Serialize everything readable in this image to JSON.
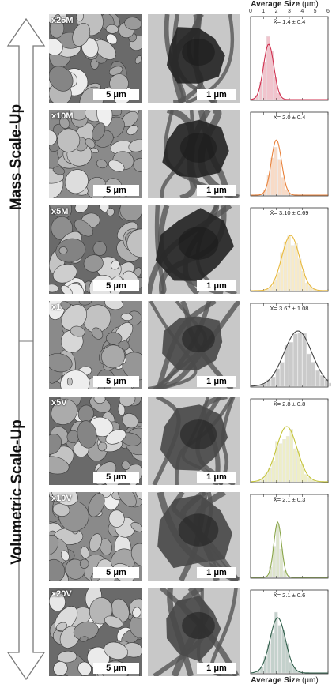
{
  "figure": {
    "axis_title": "Average Size",
    "axis_unit": "(μm)",
    "x_ticks": [
      "0",
      "1",
      "2",
      "3",
      "4",
      "5",
      "6"
    ],
    "arrows": {
      "up_label": "Mass Scale-Up",
      "down_label": "Volumetric Scale-Up"
    },
    "rows": [
      {
        "label": "x25M",
        "sem_scale": "5 μm",
        "tem_scale": "1 μm",
        "mean_text": "X̄= 1.4 ± 0.4",
        "mean": 1.4,
        "sd": 0.4,
        "color": "#d0304f"
      },
      {
        "label": "x10M",
        "sem_scale": "5 μm",
        "tem_scale": "1 μm",
        "mean_text": "X̄= 2.0 ± 0.4",
        "mean": 2.0,
        "sd": 0.4,
        "color": "#e8813a"
      },
      {
        "label": "x5M",
        "sem_scale": "5 μm",
        "tem_scale": "1 μm",
        "mean_text": "X̄= 3.10 ± 0.69",
        "mean": 3.1,
        "sd": 0.69,
        "color": "#e8b83a"
      },
      {
        "label": "x1",
        "sem_scale": "5 μm",
        "tem_scale": "1 μm",
        "mean_text": "X̄= 3.67 ± 1.08",
        "mean": 3.67,
        "sd": 1.08,
        "color": "#444444"
      },
      {
        "label": "x5V",
        "sem_scale": "5 μm",
        "tem_scale": "1 μm",
        "mean_text": "X̄= 2.8 ± 0.8",
        "mean": 2.8,
        "sd": 0.8,
        "color": "#c4c43a"
      },
      {
        "label": "x10V",
        "sem_scale": "5 μm",
        "tem_scale": "1 μm",
        "mean_text": "X̄= 2.1 ± 0.3",
        "mean": 2.1,
        "sd": 0.3,
        "color": "#8aa64a"
      },
      {
        "label": "x20V",
        "sem_scale": "5 μm",
        "tem_scale": "1 μm",
        "mean_text": "X̄= 2.1 ± 0.6",
        "mean": 2.1,
        "sd": 0.6,
        "color": "#2f5e4a"
      }
    ]
  },
  "chart_data": {
    "type": "bar",
    "xlabel": "Average Size (μm)",
    "xlim": [
      0,
      6
    ],
    "series": [
      {
        "name": "x25M",
        "mean": 1.4,
        "sd": 0.4
      },
      {
        "name": "x10M",
        "mean": 2.0,
        "sd": 0.4
      },
      {
        "name": "x5M",
        "mean": 3.1,
        "sd": 0.69
      },
      {
        "name": "x1",
        "mean": 3.67,
        "sd": 1.08
      },
      {
        "name": "x5V",
        "mean": 2.8,
        "sd": 0.8
      },
      {
        "name": "x10V",
        "mean": 2.1,
        "sd": 0.3
      },
      {
        "name": "x20V",
        "mean": 2.1,
        "sd": 0.6
      }
    ]
  }
}
